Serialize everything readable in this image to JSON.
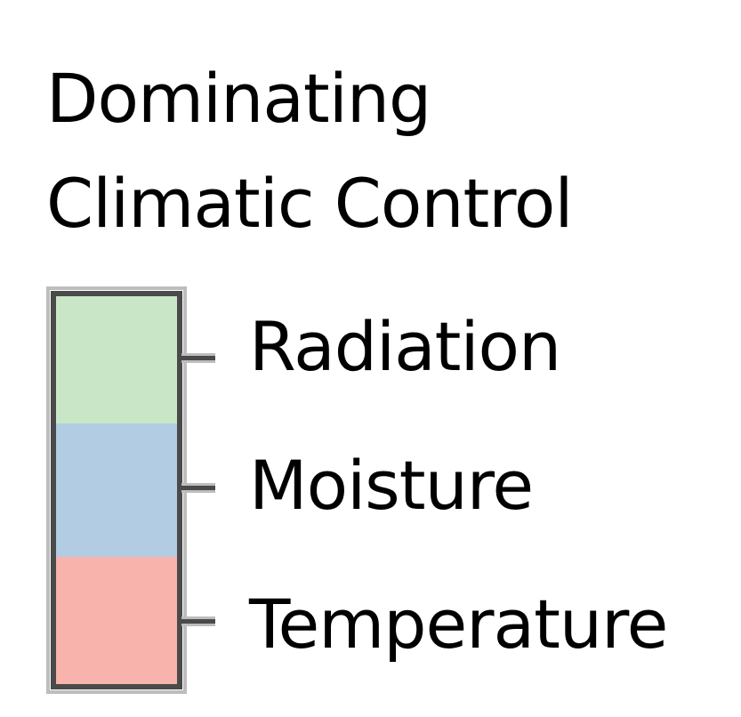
{
  "legend": {
    "title_line1": "Dominating",
    "title_line2": "Climatic Control",
    "items": [
      {
        "label": "Radiation",
        "color": "#c9e7c6"
      },
      {
        "label": "Moisture",
        "color": "#b1cce3"
      },
      {
        "label": "Temperature",
        "color": "#f7b3ac"
      }
    ],
    "border_color": "#4a4a4a"
  }
}
